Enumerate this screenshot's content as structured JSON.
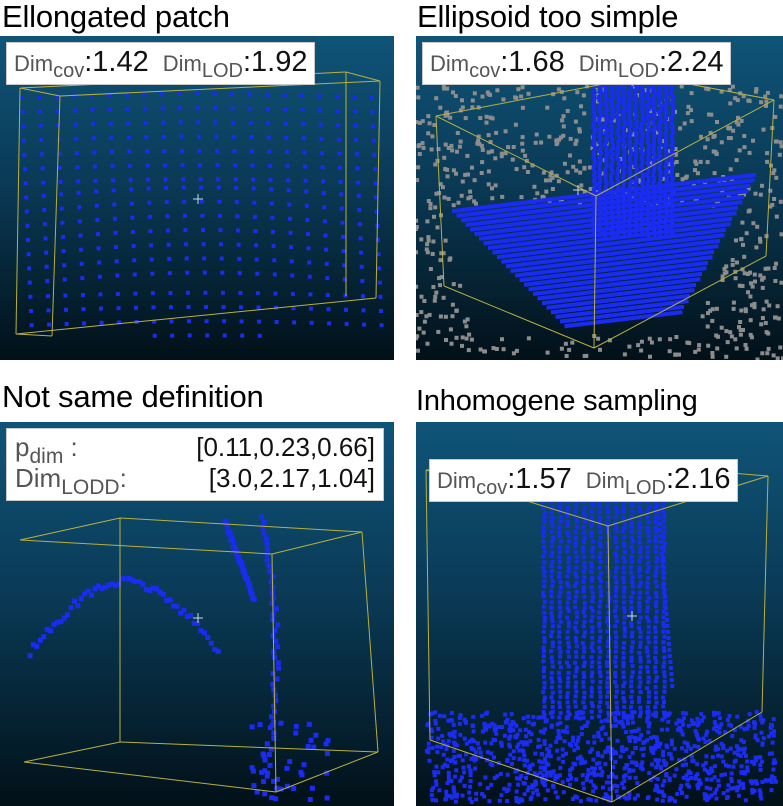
{
  "panels": [
    {
      "title": "Ellongated patch",
      "metrics": [
        {
          "name": "Dim",
          "sub": "cov",
          "value": ":1.42"
        },
        {
          "name": "Dim",
          "sub": "LOD",
          "value": ":1.92"
        }
      ]
    },
    {
      "title": "Ellipsoid too simple",
      "metrics": [
        {
          "name": "Dim",
          "sub": "cov",
          "value": ":1.68"
        },
        {
          "name": "Dim",
          "sub": "LOD",
          "value": ":2.24"
        }
      ]
    },
    {
      "title": "Not same definition",
      "rows": [
        {
          "name": "p",
          "sub": "dim",
          "sep": " :",
          "value": "[0.11,0.23,0.66]"
        },
        {
          "name": "Dim",
          "sub": "LODD",
          "sep": ":",
          "value": "[3.0,2.17,1.04]"
        }
      ]
    },
    {
      "title": "Inhomogene sampling",
      "metrics": [
        {
          "name": "Dim",
          "sub": "cov",
          "value": ":1.57"
        },
        {
          "name": "Dim",
          "sub": "LOD",
          "value": ":2.16"
        }
      ]
    }
  ],
  "colors": {
    "points": "#1a2cf0",
    "gray_points": "#8c8c8c",
    "box_edges": "#b8b040",
    "background_top": "#0f5478",
    "background_bottom": "#021018"
  }
}
